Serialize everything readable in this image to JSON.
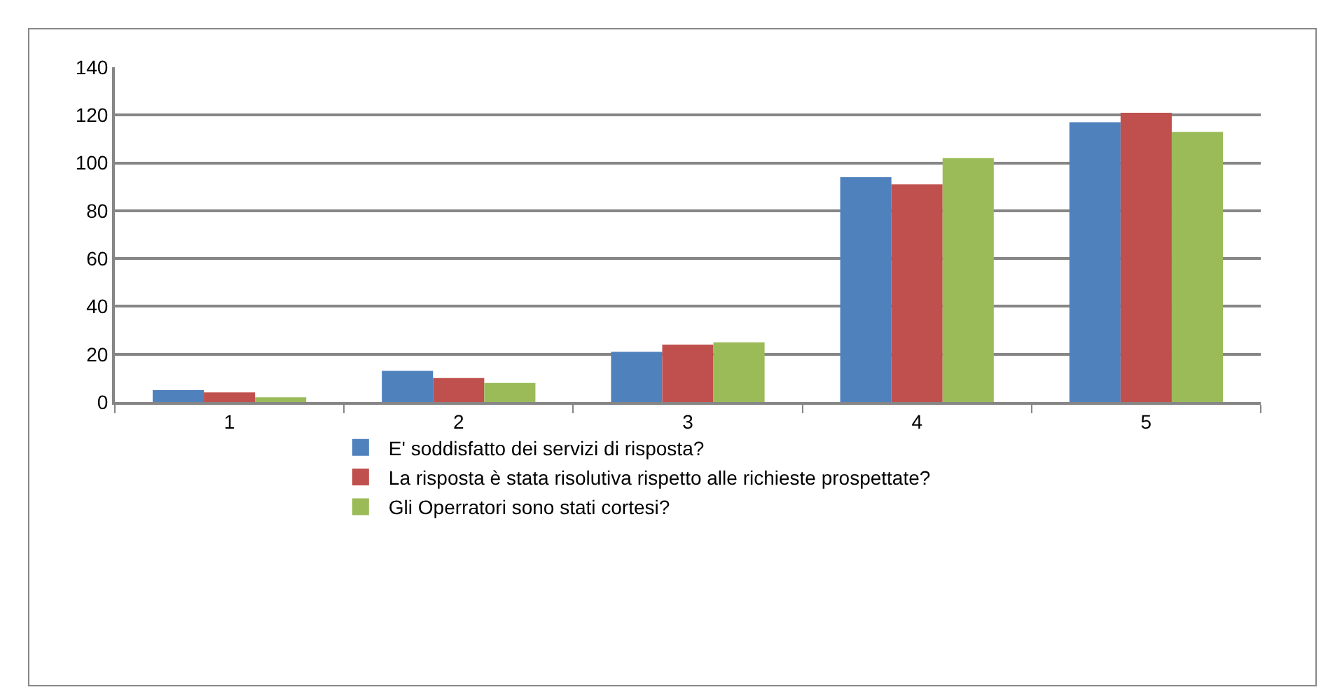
{
  "chart_data": {
    "type": "bar",
    "categories": [
      "1",
      "2",
      "3",
      "4",
      "5"
    ],
    "series": [
      {
        "name": "E' soddisfatto dei servizi di risposta?",
        "color": "#4f81bd",
        "values": [
          5,
          13,
          21,
          94,
          117
        ]
      },
      {
        "name": "La risposta è stata risolutiva rispetto alle richieste prospettate?",
        "color": "#c0504d",
        "values": [
          4,
          10,
          24,
          91,
          121
        ]
      },
      {
        "name": "Gli Operratori sono stati cortesi?",
        "color": "#9bbb59",
        "values": [
          2,
          8,
          25,
          102,
          113
        ]
      }
    ],
    "ylim": [
      0,
      140
    ],
    "yticks": [
      0,
      20,
      40,
      60,
      80,
      100,
      120,
      140
    ],
    "grid": "y",
    "legend": "bottom"
  }
}
